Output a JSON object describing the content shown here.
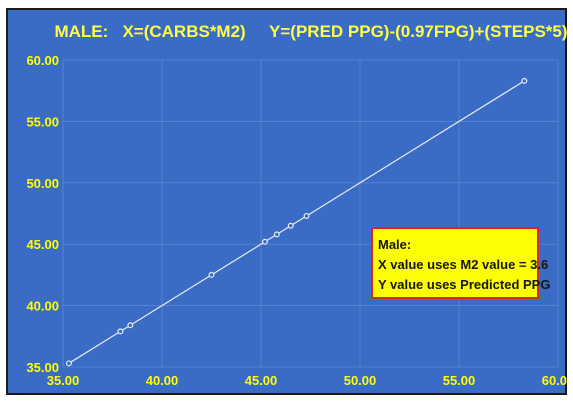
{
  "chart_data": {
    "type": "scatter",
    "title": "MALE:   X=(CARBS*M2)     Y=(PRED PPG)-(0.97FPG)+(STEPS*5)",
    "xlabel": "",
    "ylabel": "",
    "xlim": [
      35,
      60
    ],
    "ylim": [
      35,
      60
    ],
    "xticks": [
      "35.00",
      "40.00",
      "45.00",
      "50.00",
      "55.00",
      "60.00"
    ],
    "yticks": [
      "35.00",
      "40.00",
      "45.00",
      "50.00",
      "55.00",
      "60.00"
    ],
    "grid": true,
    "connected": true,
    "series": [
      {
        "points": [
          {
            "x": 35.3,
            "y": 35.3
          },
          {
            "x": 37.9,
            "y": 37.9
          },
          {
            "x": 38.4,
            "y": 38.4
          },
          {
            "x": 42.5,
            "y": 42.5
          },
          {
            "x": 45.2,
            "y": 45.2
          },
          {
            "x": 45.8,
            "y": 45.8
          },
          {
            "x": 46.5,
            "y": 46.5
          },
          {
            "x": 47.3,
            "y": 47.3
          },
          {
            "x": 58.3,
            "y": 58.3
          }
        ]
      }
    ],
    "annotation": {
      "lines": [
        "Male:",
        "X value uses M2 value = 3.6",
        "Y value uses Predicted PPG"
      ]
    }
  },
  "colors": {
    "plot_background": "#3a6cc6",
    "title_text": "#ffff40",
    "tick_text": "#ffff00",
    "line": "#e8ecf5",
    "annotation_fill": "#fdfd04",
    "annotation_border": "#d22a1e"
  }
}
